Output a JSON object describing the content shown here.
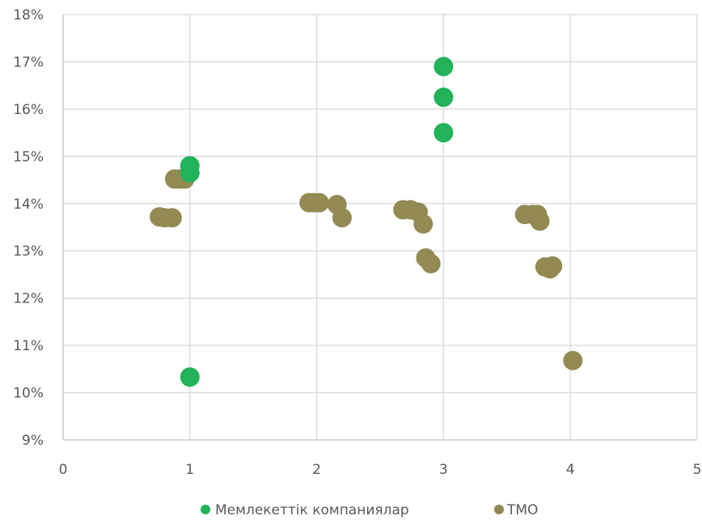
{
  "chart_data": {
    "type": "scatter",
    "title": "",
    "xlabel": "",
    "ylabel": "",
    "xlim": [
      0,
      5
    ],
    "ylim": [
      9,
      18
    ],
    "x_ticks": [
      "0",
      "1",
      "2",
      "3",
      "4",
      "5"
    ],
    "y_ticks": [
      "9%",
      "10%",
      "11%",
      "12%",
      "13%",
      "14%",
      "15%",
      "16%",
      "17%",
      "18%"
    ],
    "grid": true,
    "legend_position": "bottom",
    "series": [
      {
        "name": "Мемлекеттік компаниялар",
        "color": "#21b25a",
        "points": [
          [
            1.0,
            14.8
          ],
          [
            1.0,
            14.65
          ],
          [
            1.0,
            10.33
          ],
          [
            3.0,
            16.9
          ],
          [
            3.0,
            16.25
          ],
          [
            3.0,
            15.5
          ]
        ]
      },
      {
        "name": "ТМО",
        "color": "#938953",
        "points": [
          [
            0.76,
            13.72
          ],
          [
            0.8,
            13.7
          ],
          [
            0.86,
            13.7
          ],
          [
            0.88,
            14.52
          ],
          [
            0.92,
            14.52
          ],
          [
            0.96,
            14.52
          ],
          [
            1.94,
            14.02
          ],
          [
            1.98,
            14.02
          ],
          [
            2.02,
            14.02
          ],
          [
            2.16,
            13.98
          ],
          [
            2.2,
            13.7
          ],
          [
            2.68,
            13.87
          ],
          [
            2.74,
            13.87
          ],
          [
            2.8,
            13.82
          ],
          [
            2.84,
            13.57
          ],
          [
            2.86,
            12.85
          ],
          [
            2.9,
            12.73
          ],
          [
            3.64,
            13.77
          ],
          [
            3.7,
            13.77
          ],
          [
            3.74,
            13.77
          ],
          [
            3.76,
            13.63
          ],
          [
            3.8,
            12.66
          ],
          [
            3.84,
            12.62
          ],
          [
            3.86,
            12.68
          ],
          [
            4.02,
            10.68
          ]
        ]
      }
    ]
  }
}
